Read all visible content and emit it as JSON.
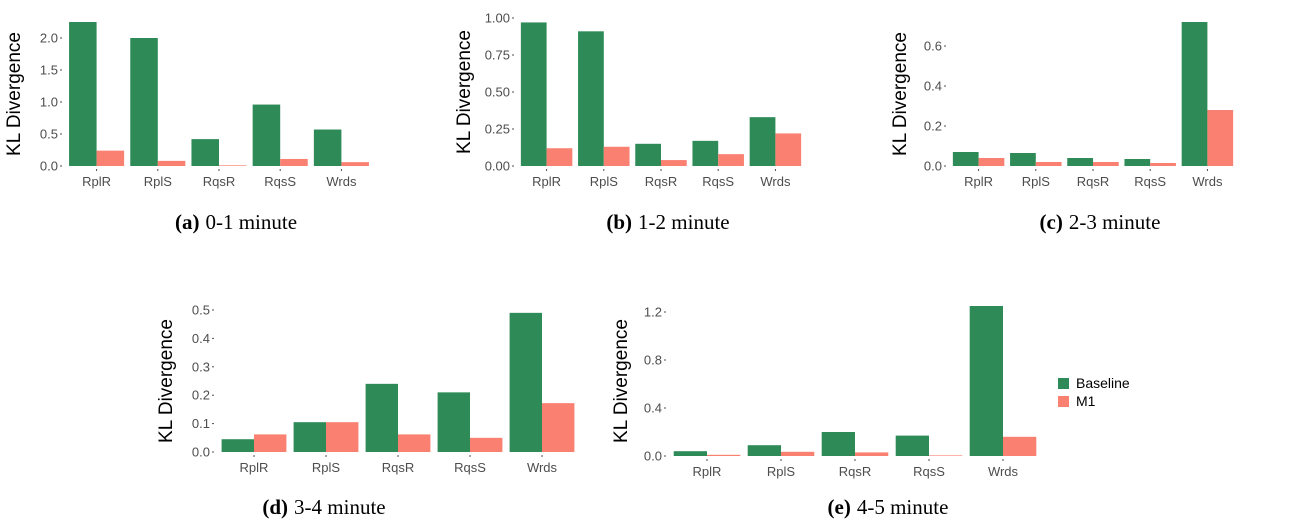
{
  "legend": {
    "items": [
      {
        "label": "Baseline",
        "color": "#2e8b57"
      },
      {
        "label": "M1",
        "color": "#fa8072"
      }
    ]
  },
  "chart_data": [
    {
      "type": "bar",
      "panel": "(a)",
      "caption": "0-1 minute",
      "ylabel": "KL Divergence",
      "categories": [
        "RplR",
        "RplS",
        "RqsR",
        "RqsS",
        "Wrds"
      ],
      "yticks": [
        "0.0",
        "0.5",
        "1.0",
        "1.5",
        "2.0"
      ],
      "ylim": [
        0,
        2.25
      ],
      "series": [
        {
          "name": "Baseline",
          "values": [
            2.25,
            2.0,
            0.42,
            0.96,
            0.57
          ]
        },
        {
          "name": "M1",
          "values": [
            0.24,
            0.08,
            0.01,
            0.11,
            0.06
          ]
        }
      ]
    },
    {
      "type": "bar",
      "panel": "(b)",
      "caption": "1-2 minute",
      "ylabel": "KL Divergence",
      "categories": [
        "RplR",
        "RplS",
        "RqsR",
        "RqsS",
        "Wrds"
      ],
      "yticks": [
        "0.00",
        "0.25",
        "0.50",
        "0.75",
        "1.00"
      ],
      "ylim": [
        0,
        1.0
      ],
      "series": [
        {
          "name": "Baseline",
          "values": [
            0.97,
            0.91,
            0.15,
            0.17,
            0.33
          ]
        },
        {
          "name": "M1",
          "values": [
            0.12,
            0.13,
            0.04,
            0.08,
            0.22
          ]
        }
      ]
    },
    {
      "type": "bar",
      "panel": "(c)",
      "caption": "2-3 minute",
      "ylabel": "KL Divergence",
      "categories": [
        "RplR",
        "RplS",
        "RqsR",
        "RqsS",
        "Wrds"
      ],
      "yticks": [
        "0.0",
        "0.2",
        "0.4",
        "0.6"
      ],
      "ylim": [
        0,
        0.72
      ],
      "series": [
        {
          "name": "Baseline",
          "values": [
            0.07,
            0.065,
            0.04,
            0.035,
            0.72
          ]
        },
        {
          "name": "M1",
          "values": [
            0.04,
            0.02,
            0.02,
            0.015,
            0.28
          ]
        }
      ]
    },
    {
      "type": "bar",
      "panel": "(d)",
      "caption": "3-4 minute",
      "ylabel": "KL Divergence",
      "categories": [
        "RplR",
        "RplS",
        "RqsR",
        "RqsS",
        "Wrds"
      ],
      "yticks": [
        "0.0",
        "0.1",
        "0.2",
        "0.3",
        "0.4",
        "0.5"
      ],
      "ylim": [
        0,
        0.5
      ],
      "series": [
        {
          "name": "Baseline",
          "values": [
            0.045,
            0.105,
            0.24,
            0.21,
            0.49
          ]
        },
        {
          "name": "M1",
          "values": [
            0.062,
            0.105,
            0.062,
            0.05,
            0.172
          ]
        }
      ]
    },
    {
      "type": "bar",
      "panel": "(e)",
      "caption": "4-5 minute",
      "ylabel": "KL Divergence",
      "categories": [
        "RplR",
        "RplS",
        "RqsR",
        "RqsS",
        "Wrds"
      ],
      "yticks": [
        "0.0",
        "0.4",
        "0.8",
        "1.2"
      ],
      "ylim": [
        0,
        1.25
      ],
      "series": [
        {
          "name": "Baseline",
          "values": [
            0.04,
            0.09,
            0.2,
            0.17,
            1.25
          ]
        },
        {
          "name": "M1",
          "values": [
            0.01,
            0.035,
            0.03,
            0.005,
            0.16
          ]
        }
      ]
    }
  ]
}
